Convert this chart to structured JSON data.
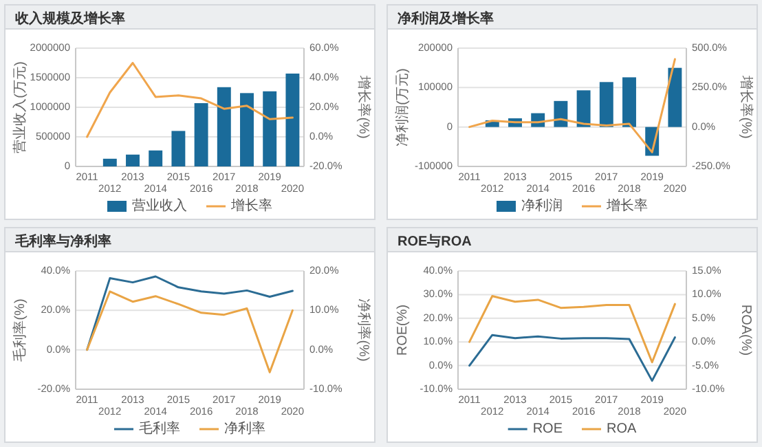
{
  "chart_data": [
    {
      "type": "bar",
      "title": "收入规模及增长率",
      "ylabel": "营业收入(万元)",
      "y2label": "增长率(%)",
      "categories": [
        "2011",
        "2012",
        "2013",
        "2014",
        "2015",
        "2016",
        "2017",
        "2018",
        "2019",
        "2020"
      ],
      "series": [
        {
          "name": "营业收入",
          "color": "#1a6b9a",
          "values": [
            null,
            130000,
            200000,
            270000,
            600000,
            1070000,
            1340000,
            1240000,
            1270000,
            1570000
          ]
        },
        {
          "name": "增长率",
          "type": "line",
          "axis": "y2",
          "color": "#f0a54c",
          "values": [
            0,
            30,
            50,
            27,
            28,
            26,
            19,
            21,
            12,
            13
          ]
        }
      ],
      "ylim": [
        0,
        2000000
      ],
      "yticks": [
        0,
        500000,
        1000000,
        1500000,
        2000000
      ],
      "y2lim": [
        -20,
        60
      ],
      "y2ticks": [
        {
          "value": -20,
          "label": "-20.0%"
        },
        {
          "value": 0,
          "label": "0.0%"
        },
        {
          "value": 20,
          "label": "20.0%"
        },
        {
          "value": 40,
          "label": "40.0%"
        },
        {
          "value": 60,
          "label": "60.0%"
        }
      ],
      "grid": "y",
      "legend": "bottom"
    },
    {
      "type": "bar",
      "title": "净利润及增长率",
      "ylabel": "净利润(万元)",
      "y2label": "增长率(%)",
      "categories": [
        "2011",
        "2012",
        "2013",
        "2014",
        "2015",
        "2016",
        "2017",
        "2018",
        "2019",
        "2020"
      ],
      "series": [
        {
          "name": "净利润",
          "color": "#1a6b9a",
          "values": [
            null,
            17000,
            22000,
            35000,
            66000,
            93000,
            114000,
            126000,
            -73000,
            150000
          ]
        },
        {
          "name": "增长率",
          "type": "line",
          "axis": "y2",
          "color": "#f0a54c",
          "values": [
            0,
            40,
            30,
            30,
            50,
            20,
            10,
            20,
            -160,
            430
          ]
        }
      ],
      "ylim": [
        -100000,
        200000
      ],
      "yticks": [
        -100000,
        0,
        100000,
        200000
      ],
      "y2lim": [
        -250,
        500
      ],
      "y2ticks": [
        {
          "value": -250,
          "label": "-250.0%"
        },
        {
          "value": 0,
          "label": "0.0%"
        },
        {
          "value": 250,
          "label": "250.0%"
        },
        {
          "value": 500,
          "label": "500.0%"
        }
      ],
      "grid": "y",
      "legend": "bottom"
    },
    {
      "type": "line",
      "title": "毛利率与净利率",
      "ylabel": "毛利率(%)",
      "y2label": "净利率(%)",
      "categories": [
        "2011",
        "2012",
        "2013",
        "2014",
        "2015",
        "2016",
        "2017",
        "2018",
        "2019",
        "2020"
      ],
      "series": [
        {
          "name": "毛利率",
          "color": "#2b6c94",
          "values": [
            0,
            36.3,
            34.2,
            37.2,
            31.7,
            29.6,
            28.5,
            30.1,
            26.9,
            29.9
          ]
        },
        {
          "name": "净利率",
          "axis": "y2",
          "color": "#e9a445",
          "values": [
            0,
            14.8,
            12.2,
            13.6,
            11.6,
            9.4,
            8.9,
            10.5,
            -5.7,
            10.0
          ]
        }
      ],
      "ylim": [
        -20,
        40
      ],
      "yticks": [
        {
          "value": -20,
          "label": "-20.0%"
        },
        {
          "value": 0,
          "label": "0.0%"
        },
        {
          "value": 20,
          "label": "20.0%"
        },
        {
          "value": 40,
          "label": "40.0%"
        }
      ],
      "y2lim": [
        -10,
        20
      ],
      "y2ticks": [
        {
          "value": -10,
          "label": "-10.0%"
        },
        {
          "value": 0,
          "label": "0.0%"
        },
        {
          "value": 10,
          "label": "10.0%"
        },
        {
          "value": 20,
          "label": "20.0%"
        }
      ],
      "grid": "y",
      "legend": "bottom"
    },
    {
      "type": "line",
      "title": "ROE与ROA",
      "ylabel": "ROE(%)",
      "y2label": "ROA(%)",
      "categories": [
        "2011",
        "2012",
        "2013",
        "2014",
        "2015",
        "2016",
        "2017",
        "2018",
        "2019",
        "2020"
      ],
      "series": [
        {
          "name": "ROE",
          "color": "#2b6c94",
          "values": [
            0,
            12.9,
            11.6,
            12.3,
            11.4,
            11.6,
            11.6,
            11.2,
            -6.4,
            11.9
          ]
        },
        {
          "name": "ROA",
          "axis": "y2",
          "color": "#e9a445",
          "values": [
            0,
            9.7,
            8.5,
            8.9,
            7.2,
            7.4,
            7.8,
            7.8,
            -4.3,
            8.0
          ]
        }
      ],
      "ylim": [
        -10,
        40
      ],
      "yticks": [
        {
          "value": -10,
          "label": "-10.0%"
        },
        {
          "value": 0,
          "label": "0.0%"
        },
        {
          "value": 10,
          "label": "10.0%"
        },
        {
          "value": 20,
          "label": "20.0%"
        },
        {
          "value": 30,
          "label": "30.0%"
        },
        {
          "value": 40,
          "label": "40.0%"
        }
      ],
      "y2lim": [
        -10,
        15
      ],
      "y2ticks": [
        {
          "value": -10,
          "label": "-10.0%"
        },
        {
          "value": -5,
          "label": "-5.0%"
        },
        {
          "value": 0,
          "label": "0.0%"
        },
        {
          "value": 5,
          "label": "5.0%"
        },
        {
          "value": 10,
          "label": "10.0%"
        },
        {
          "value": 15,
          "label": "15.0%"
        }
      ],
      "grid": "y",
      "legend": "bottom"
    }
  ]
}
